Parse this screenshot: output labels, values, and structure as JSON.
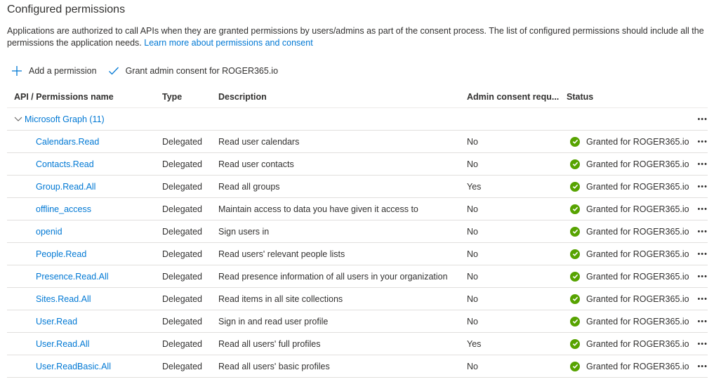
{
  "title": "Configured permissions",
  "description": "Applications are authorized to call APIs when they are granted permissions by users/admins as part of the consent process. The list of configured permissions should include all the permissions the application needs.",
  "learn_more": "Learn more about permissions and consent",
  "toolbar": {
    "add": "Add a permission",
    "grant": "Grant admin consent for ROGER365.io"
  },
  "columns": [
    "API / Permissions name",
    "Type",
    "Description",
    "Admin consent requ...",
    "Status"
  ],
  "group": "Microsoft Graph (11)",
  "colors": {
    "accent": "#0078d4",
    "granted": "#57a300"
  },
  "rows": [
    {
      "name": "Calendars.Read",
      "type": "Delegated",
      "desc": "Read user calendars",
      "admin": "No",
      "status": "Granted for ROGER365.io"
    },
    {
      "name": "Contacts.Read",
      "type": "Delegated",
      "desc": "Read user contacts",
      "admin": "No",
      "status": "Granted for ROGER365.io"
    },
    {
      "name": "Group.Read.All",
      "type": "Delegated",
      "desc": "Read all groups",
      "admin": "Yes",
      "status": "Granted for ROGER365.io"
    },
    {
      "name": "offline_access",
      "type": "Delegated",
      "desc": "Maintain access to data you have given it access to",
      "admin": "No",
      "status": "Granted for ROGER365.io"
    },
    {
      "name": "openid",
      "type": "Delegated",
      "desc": "Sign users in",
      "admin": "No",
      "status": "Granted for ROGER365.io"
    },
    {
      "name": "People.Read",
      "type": "Delegated",
      "desc": "Read users' relevant people lists",
      "admin": "No",
      "status": "Granted for ROGER365.io"
    },
    {
      "name": "Presence.Read.All",
      "type": "Delegated",
      "desc": "Read presence information of all users in your organization",
      "admin": "No",
      "status": "Granted for ROGER365.io"
    },
    {
      "name": "Sites.Read.All",
      "type": "Delegated",
      "desc": "Read items in all site collections",
      "admin": "No",
      "status": "Granted for ROGER365.io"
    },
    {
      "name": "User.Read",
      "type": "Delegated",
      "desc": "Sign in and read user profile",
      "admin": "No",
      "status": "Granted for ROGER365.io"
    },
    {
      "name": "User.Read.All",
      "type": "Delegated",
      "desc": "Read all users' full profiles",
      "admin": "Yes",
      "status": "Granted for ROGER365.io"
    },
    {
      "name": "User.ReadBasic.All",
      "type": "Delegated",
      "desc": "Read all users' basic profiles",
      "admin": "No",
      "status": "Granted for ROGER365.io"
    }
  ],
  "more": "•••"
}
